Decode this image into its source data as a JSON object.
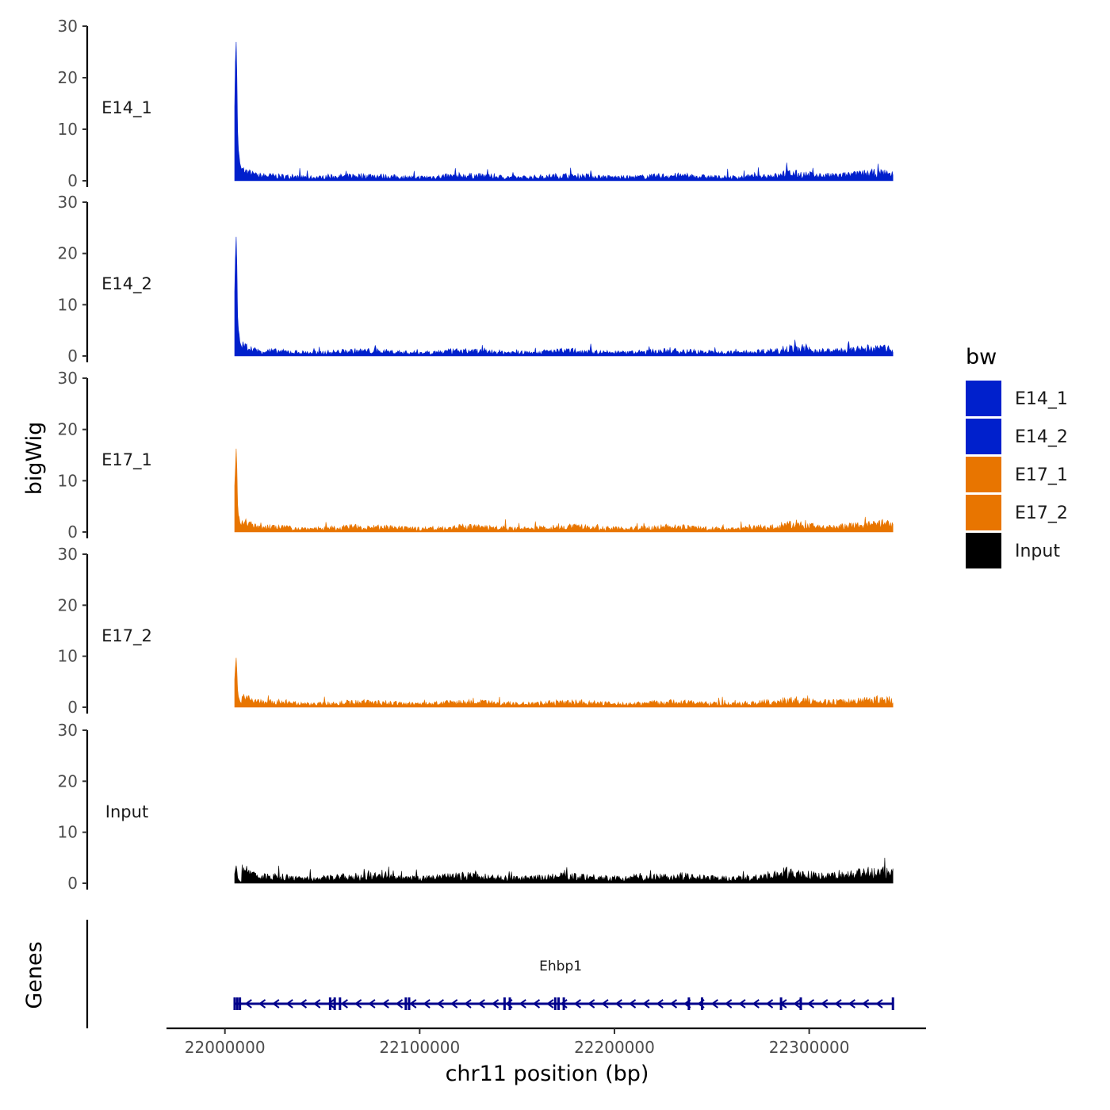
{
  "chart_data": {
    "type": "area",
    "tracks": [
      {
        "name": "E14_1",
        "color": "#0020CC",
        "peak": 29,
        "baseline": 1.0,
        "ylim": [
          0,
          30
        ],
        "yticks": [
          "0",
          "10",
          "20",
          "30"
        ]
      },
      {
        "name": "E14_2",
        "color": "#0020CC",
        "peak": 24,
        "baseline": 1.0,
        "ylim": [
          0,
          30
        ],
        "yticks": [
          "0",
          "10",
          "20",
          "30"
        ]
      },
      {
        "name": "E17_1",
        "color": "#E87500",
        "peak": 16.5,
        "baseline": 1.0,
        "ylim": [
          0,
          30
        ],
        "yticks": [
          "0",
          "10",
          "20",
          "30"
        ]
      },
      {
        "name": "E17_2",
        "color": "#E87500",
        "peak": 10,
        "baseline": 1.0,
        "ylim": [
          0,
          30
        ],
        "yticks": [
          "0",
          "10",
          "20",
          "30"
        ]
      },
      {
        "name": "Input",
        "color": "#000000",
        "peak": 3.5,
        "baseline": 1.4,
        "ylim": [
          0,
          30
        ],
        "yticks": [
          "0",
          "10",
          "20",
          "30"
        ]
      }
    ],
    "x_range": [
      21970000,
      22360000
    ],
    "data_range": [
      22005000,
      22343000
    ],
    "x_ticks": [
      22000000,
      22100000,
      22200000,
      22300000
    ],
    "x_tick_labels": [
      "22000000",
      "22100000",
      "22200000",
      "22300000"
    ],
    "xlabel": "chr11 position (bp)",
    "ylabel": "bigWig",
    "genes_label": "Genes",
    "gene": {
      "name": "Ehbp1",
      "start": 22005000,
      "end": 22343000,
      "strand": "-",
      "color": "#00008B"
    },
    "legend": {
      "title": "bw",
      "position": "right",
      "entries": [
        {
          "label": "E14_1",
          "color": "#0020CC"
        },
        {
          "label": "E14_2",
          "color": "#0020CC"
        },
        {
          "label": "E17_1",
          "color": "#E87500"
        },
        {
          "label": "E17_2",
          "color": "#E87500"
        },
        {
          "label": "Input",
          "color": "#000000"
        }
      ]
    }
  }
}
